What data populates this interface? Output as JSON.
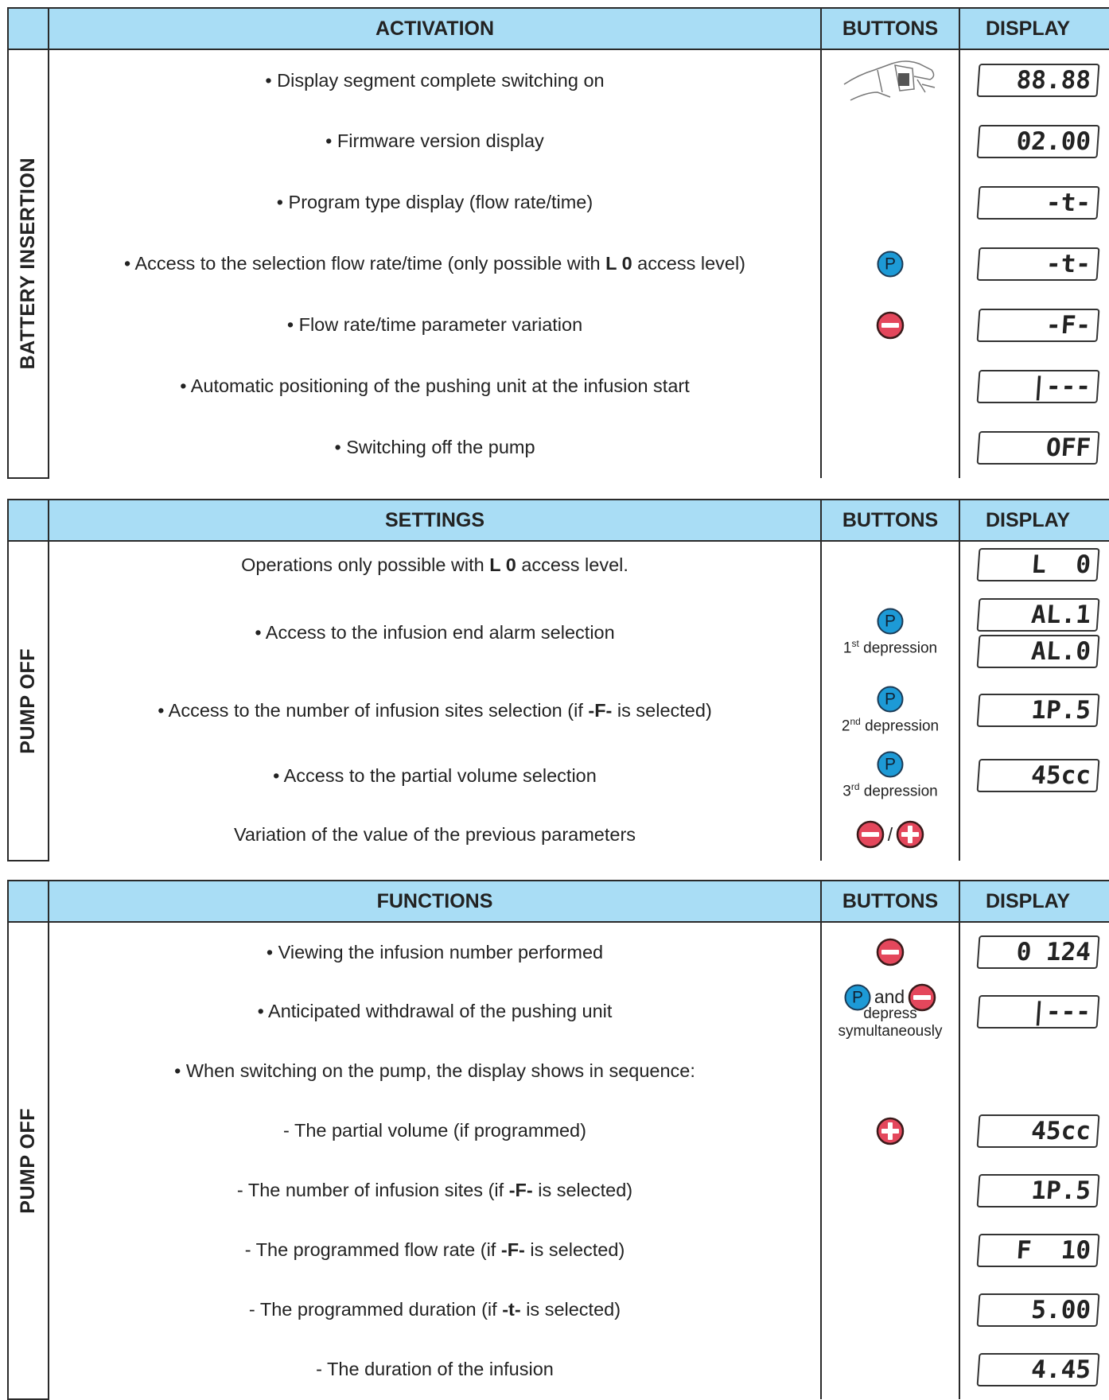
{
  "sections": [
    {
      "side_label": "BATTERY INSERTION",
      "header": {
        "title": "ACTIVATION",
        "buttons": "BUTTONS",
        "display": "DISPLAY"
      },
      "rows": [
        {
          "text": [
            {
              "t": "• Display segment complete switching on"
            }
          ],
          "button": {
            "items": [
              {
                "icon": "photo"
              }
            ]
          },
          "display": [
            "88.88"
          ]
        },
        {
          "text": [
            {
              "t": "• Firmware version display"
            }
          ],
          "display": [
            "02.00"
          ]
        },
        {
          "text": [
            {
              "t": "• Program type display (flow rate/time)"
            }
          ],
          "display": [
            "-t-"
          ]
        },
        {
          "text": [
            {
              "t": "• Access to the selection flow rate/time (only possible with "
            },
            {
              "t": "L 0",
              "bold": true
            },
            {
              "t": " access level)"
            }
          ],
          "button": {
            "items": [
              {
                "icon": "circle",
                "label": "P"
              }
            ]
          },
          "display": [
            "-t-"
          ]
        },
        {
          "text": [
            {
              "t": "• Flow rate/time parameter variation"
            }
          ],
          "button": {
            "items": [
              {
                "icon": "minus"
              }
            ]
          },
          "display": [
            "-F-"
          ]
        },
        {
          "text": [
            {
              "t": "• Automatic positioning of the pushing unit at the infusion start"
            }
          ],
          "display": [
            "|---"
          ]
        },
        {
          "text": [
            {
              "t": "• Switching off the pump"
            }
          ],
          "display": [
            "OFF"
          ]
        }
      ]
    },
    {
      "side_label": "PUMP OFF",
      "header": {
        "title": "SETTINGS",
        "buttons": "BUTTONS",
        "display": "DISPLAY"
      },
      "rows": [
        {
          "text": [
            {
              "t": "Operations only possible with "
            },
            {
              "t": "L 0",
              "bold": true
            },
            {
              "t": " access level."
            }
          ],
          "display": [
            "L  0"
          ]
        },
        {
          "text": [
            {
              "t": "• Access to the infusion end alarm selection"
            }
          ],
          "button": {
            "items": [
              {
                "icon": "circle",
                "label": "P"
              }
            ],
            "caption": {
              "num": "1",
              "sup": "st",
              "rest": " depression"
            }
          },
          "display": [
            "AL.1",
            "AL.0"
          ]
        },
        {
          "text": [
            {
              "t": "• Access to the number of infusion sites selection (if "
            },
            {
              "t": "-F-",
              "bold": true
            },
            {
              "t": " is selected)"
            }
          ],
          "button": {
            "items": [
              {
                "icon": "circle",
                "label": "P"
              }
            ],
            "caption": {
              "num": "2",
              "sup": "nd",
              "rest": " depression"
            }
          },
          "display": [
            "1P.5"
          ]
        },
        {
          "text": [
            {
              "t": "• Access to the partial volume selection"
            }
          ],
          "button": {
            "items": [
              {
                "icon": "circle",
                "label": "P"
              }
            ],
            "caption": {
              "num": "3",
              "sup": "rd",
              "rest": " depression"
            }
          },
          "display": [
            "45cc"
          ]
        },
        {
          "text": [
            {
              "t": "Variation of the value of the previous parameters"
            }
          ],
          "button": {
            "items": [
              {
                "icon": "minus"
              },
              {
                "text": "/"
              },
              {
                "icon": "plus"
              }
            ]
          },
          "display": []
        }
      ]
    },
    {
      "side_label": "PUMP OFF",
      "header": {
        "title": "FUNCTIONS",
        "buttons": "BUTTONS",
        "display": "DISPLAY"
      },
      "rows": [
        {
          "text": [
            {
              "t": "• Viewing the infusion number performed"
            }
          ],
          "button": {
            "items": [
              {
                "icon": "minus"
              }
            ]
          },
          "display": [
            "0 124"
          ]
        },
        {
          "text": [
            {
              "t": "• Anticipated withdrawal of the pushing unit"
            }
          ],
          "button": {
            "items": [
              {
                "icon": "circle",
                "label": "P"
              },
              {
                "text": "and"
              },
              {
                "icon": "minus"
              }
            ],
            "lines": [
              "depress",
              "symultaneously"
            ]
          },
          "display": [
            "|---"
          ]
        },
        {
          "text": [
            {
              "t": "• When switching on the pump, the display shows in sequence:"
            }
          ],
          "display": []
        },
        {
          "text": [
            {
              "t": "- The partial volume (if programmed)"
            }
          ],
          "button": {
            "items": [
              {
                "icon": "plus"
              }
            ]
          },
          "display": [
            "45cc"
          ]
        },
        {
          "text": [
            {
              "t": "- The number of infusion sites (if "
            },
            {
              "t": "-F-",
              "bold": true
            },
            {
              "t": " is selected)"
            }
          ],
          "display": [
            "1P.5"
          ]
        },
        {
          "text": [
            {
              "t": "- The programmed flow rate (if "
            },
            {
              "t": "-F-",
              "bold": true
            },
            {
              "t": " is selected)"
            }
          ],
          "display": [
            "F  10"
          ]
        },
        {
          "text": [
            {
              "t": "- The programmed duration (if "
            },
            {
              "t": "-t-",
              "bold": true
            },
            {
              "t": " is selected)"
            }
          ],
          "display": [
            "5.00"
          ]
        },
        {
          "text": [
            {
              "t": "- The duration of the infusion"
            }
          ],
          "display": [
            "4.45"
          ]
        }
      ]
    }
  ]
}
